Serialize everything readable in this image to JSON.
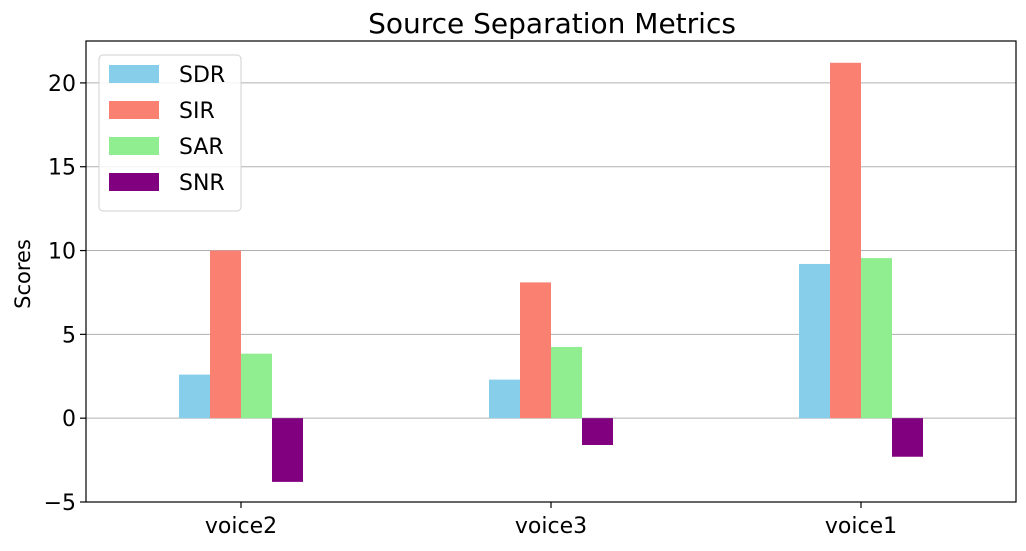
{
  "chart_data": {
    "type": "bar",
    "title": "Source Separation Metrics",
    "xlabel": "",
    "ylabel": "Scores",
    "categories": [
      "voice2",
      "voice3",
      "voice1"
    ],
    "series": [
      {
        "name": "SDR",
        "color": "#87ceeb",
        "values": [
          2.6,
          2.3,
          9.2
        ]
      },
      {
        "name": "SIR",
        "color": "#fa8072",
        "values": [
          10.0,
          8.1,
          21.2
        ]
      },
      {
        "name": "SAR",
        "color": "#90ee90",
        "values": [
          3.85,
          4.25,
          9.55
        ]
      },
      {
        "name": "SNR",
        "color": "#800080",
        "values": [
          -3.8,
          -1.6,
          -2.3
        ]
      }
    ],
    "ylim": [
      -5,
      22.5
    ],
    "yticks": [
      -5,
      0,
      5,
      10,
      15,
      20
    ],
    "grid": "y",
    "legend_position": "top-left"
  }
}
